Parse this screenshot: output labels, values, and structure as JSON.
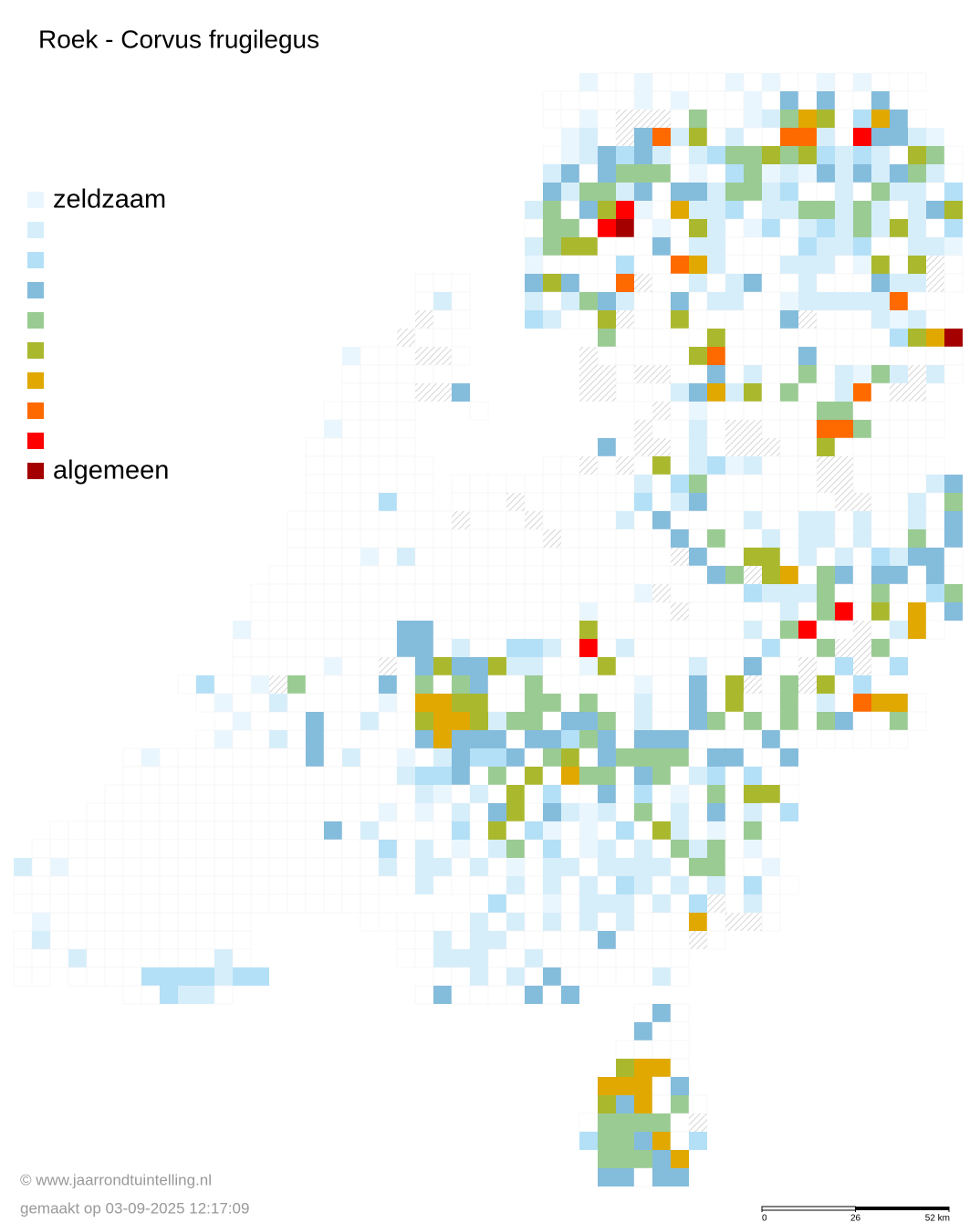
{
  "title": "Roek - Corvus frugilegus",
  "legend": {
    "classes": [
      {
        "color": "#eaf6fd",
        "label": "zeldzaam"
      },
      {
        "color": "#d6eefa"
      },
      {
        "color": "#b3e0f7"
      },
      {
        "color": "#84bcdc"
      },
      {
        "color": "#9acb93"
      },
      {
        "color": "#aab82e"
      },
      {
        "color": "#e0a800"
      },
      {
        "color": "#ff6a00"
      },
      {
        "color": "#ff0000"
      },
      {
        "color": "#a50000",
        "label": "algemeen"
      }
    ]
  },
  "map": {
    "grid": [
      "...............................0ww0wwww0w0ww0w0www",
      ".............................wwwww0w0www0w3w3ww3w",
      ".............................ww0whhhw4ww01465w263w",
      "..............................01wh3715w1ww771w83310",
      ".............................w013231w12445452121w54w",
      ".............................13w3444w0w240103131341w",
      ".............................314413w3314412ww1w411w23",
      "............................14w3580w6112w1144141w135",
      "............................w44w89w0w51w02w1214151w2",
      "............................1455www3w11wwww2112ww110",
      "............................0wwww2ww761www111w05w5hw",
      "......................www...353ww7hww1w13ww1www311hw",
      "......................w1w...1w1431ww3w11ww0111117ww",
      "......................hww...21ww5hww5wwwww3hwww101w",
      ".....................hww........4wwwww5wwwwwwwww2569",
      "..................0wwwhhw......hwwwww57wwww3wwwwwwww",
      "..................wwwwww.......hhwhhww3w1ww4w1041h1w",
      "..................wwwwhh3......hhwww13615w4ww17whhw",
      ".................wwwww...w........whw0wwwwww44wwwww",
      ".................0wwww............hww1whhwww774wwww",
      "................wwwwww..........3whhw1whhhww5wwwww",
      "................wwwwwww......wwhwhw5w1201wwwhhwwwww",
      "................wwwwwww.wwwwwwwwww1w24wwwwwwhhwwww13",
      "................wwww2ww.wwwhwwwwww2w13wwwwwwwhhww1w45",
      "...............wwwwwwwwwhwwwhwwww1w3wwww1ww11w1ww1w3w",
      "...............wwwwwwwwwwwwwwhwwwwww3w4ww1w11w1ww4w32",
      "...............wwww0w1wwwwwwwwwwwwwwh3ww55w1w1w2133w3",
      "..............wwwwwwwwwwwwwwwwwwwwwwww34h56w43w33w3ww",
      ".............wwwwwwwwwwwwwwwwwwwww0hwwww21114ww4ww24w",
      ".............wwwwwwwwwwwwwwwwww0wwwwhwwwww1w48w5w6w33",
      "............0wwwwwwww33wwwwwwww5wwwwwwww1w48wwhw16w",
      "............wwwwwwwww33w1ww221w8w1wwwwwww2ww4hh4w",
      "............wwwww0wwhw3533511ww05wwww1ww3wwhw2hw2",
      ".........w2ww0h4wwww3w4w43ww4wwwww0ww3w5hw4h5w2",
      "..........w0ww1wwwww0w6655ww44w4ww1ww3w5ww4w1w766w",
      "...........w0www3ww1ww5665144w334w1ww34w4w4w43ww4w",
      "..........w0ww1w3wwwww36333w33243w333wwww3wwwwwww",
      "......w0wwwwwwww3w1ww0w13223w45w34444w33ww3",
      "......wwwwwwwwwwwwwww1223w4w5w644w34w12w2ww",
      ".....wwwwwwwwwwwwwwwww10w1w5w2ww3w2w0w4w55w",
      "....wwwwwwwwwwwwwwww0w0w1w35w3101w4w1w3w1w2",
      "..wwwwwwwwwwwwwww3w1wwww2w5w20w0w2w51w0w4w",
      ".wwwwwwwwwwwwwwwwwww2w1w0w14w2w01w1w414w0w",
      "1w0wwwwwwwwwwwwwwwww1w11w1w0w11w1111w44ww0",
      "wwwwwwwwwwwwwwwwwwwwww1wwww1w1w1w21w1w1w2ww",
      "wwwwwwwwwwwwwwwwwwww.....w2ww0w111w1w2hw1w",
      ".0wwwwwwwwwww......wwwwww1w1w1w1w1www6whhw",
      "w1wwwwwwwwwww........ww1w11wwwww3wwwwhw",
      "www1wwwwwww1w........ww111ww1wwwwwwww",
      "ww.wwww2222122.........ww1w1w3wwwww1w",
      "......ww211w..........w3wwww3w3",
      "..................................w3w",
      "..................................3ww",
      ".................................wwww",
      ".................................566w",
      "................................666w3",
      "................................536w4w",
      "...............................w4444wh",
      "...............................24436w2",
      "................................44436",
      "................................33w33"
    ]
  },
  "scale": {
    "ticks": [
      0,
      26,
      {
        "value": 52,
        "label": "52 km"
      }
    ]
  },
  "footer": {
    "credit": "© www.jaarrondtuintelling.nl",
    "date": "gemaakt op 03-09-2025 12:17:09"
  }
}
